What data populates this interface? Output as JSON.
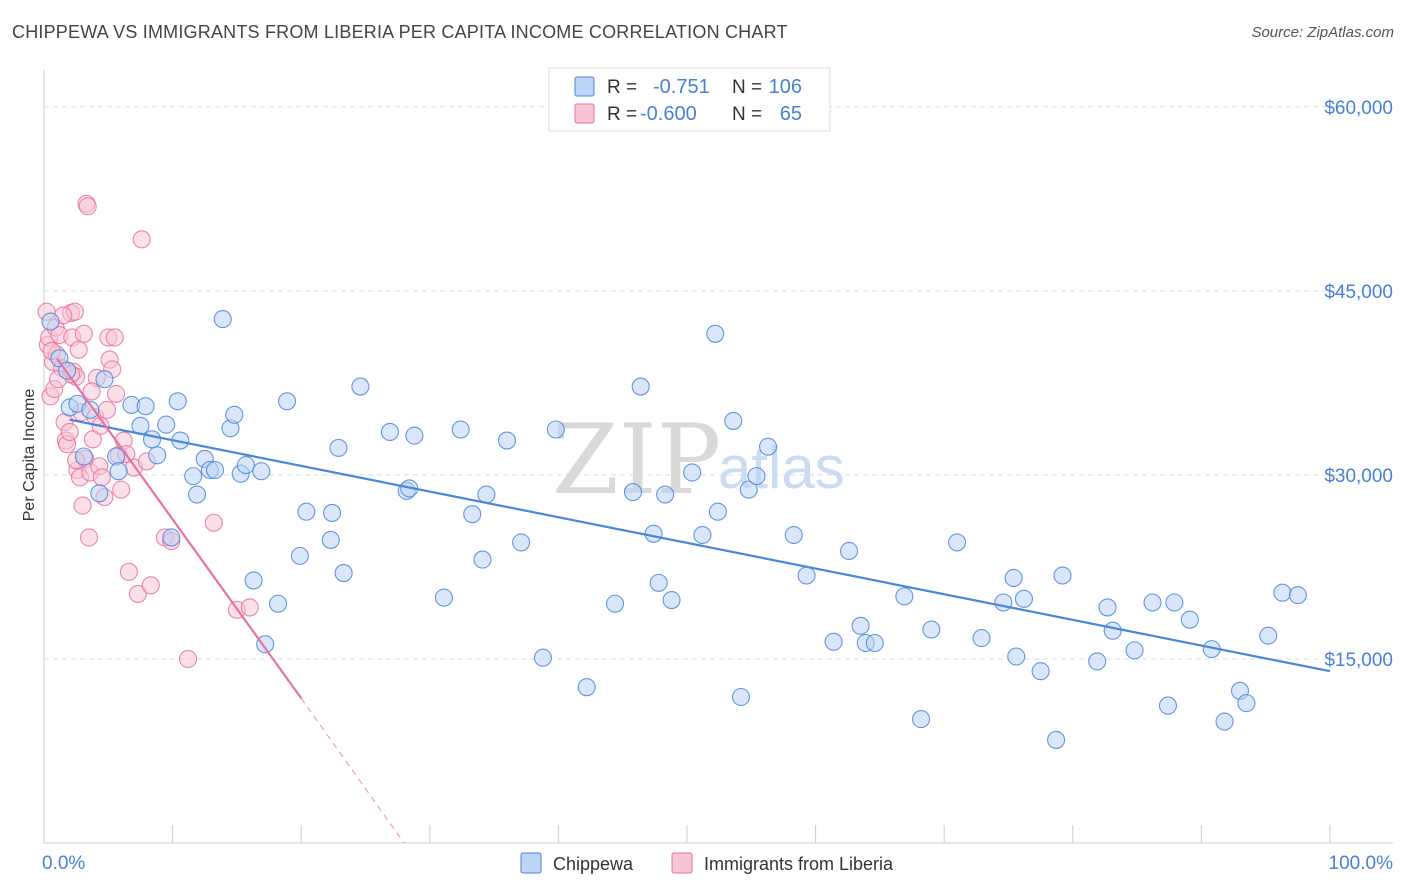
{
  "title": "CHIPPEWA VS IMMIGRANTS FROM LIBERIA PER CAPITA INCOME CORRELATION CHART",
  "source": "Source: ZipAtlas.com",
  "watermark": {
    "zip": "ZIP",
    "atlas": "atlas"
  },
  "colors": {
    "chippewa": "#4a86d8",
    "chippewa_fill": "#bcd4f5",
    "liberia": "#e8739e",
    "liberia_fill": "#f7c5d7",
    "tick_text": "#4a7fd4",
    "grid": "#dddddd"
  },
  "legend": {
    "rows": [
      {
        "r_label": "R =",
        "r_value": "-0.751",
        "n_label": "N =",
        "n_value": "106"
      },
      {
        "r_label": "R =",
        "r_value": "-0.600",
        "n_label": "N =",
        "n_value": "65"
      }
    ]
  },
  "bottom_legend": [
    "Chippewa",
    "Immigrants from Liberia"
  ],
  "chart_data": {
    "type": "scatter",
    "title": "CHIPPEWA VS IMMIGRANTS FROM LIBERIA PER CAPITA INCOME CORRELATION CHART",
    "xlabel": "",
    "ylabel": "Per Capita Income",
    "x_tick_labels": [
      "0.0%",
      "100.0%"
    ],
    "y_tick_labels": [
      "$60,000",
      "$45,000",
      "$30,000",
      "$15,000"
    ],
    "y_ticks": [
      60000,
      45000,
      30000,
      15000
    ],
    "xlim": [
      0,
      100
    ],
    "ylim": [
      0,
      63000
    ],
    "grid": true,
    "series": [
      {
        "name": "Chippewa",
        "trend": {
          "x": [
            2,
            100
          ],
          "y": [
            34500,
            14000
          ]
        },
        "points": [
          [
            0.5,
            42500
          ],
          [
            1.2,
            39500
          ],
          [
            1.8,
            38500
          ],
          [
            2,
            35500
          ],
          [
            2.6,
            35800
          ],
          [
            3.1,
            31500
          ],
          [
            3.6,
            35300
          ],
          [
            4.3,
            28500
          ],
          [
            4.7,
            37800
          ],
          [
            5.6,
            31500
          ],
          [
            5.8,
            30300
          ],
          [
            6.8,
            35700
          ],
          [
            7.5,
            34000
          ],
          [
            7.9,
            35600
          ],
          [
            8.4,
            32900
          ],
          [
            8.8,
            31600
          ],
          [
            9.5,
            34100
          ],
          [
            9.9,
            24900
          ],
          [
            10.4,
            36000
          ],
          [
            10.6,
            32800
          ],
          [
            11.6,
            29900
          ],
          [
            11.9,
            28400
          ],
          [
            12.5,
            31300
          ],
          [
            12.9,
            30400
          ],
          [
            13.3,
            30400
          ],
          [
            13.9,
            42700
          ],
          [
            14.5,
            33800
          ],
          [
            14.8,
            34900
          ],
          [
            15.3,
            30100
          ],
          [
            15.7,
            30800
          ],
          [
            16.3,
            21400
          ],
          [
            16.9,
            30300
          ],
          [
            17.2,
            16200
          ],
          [
            18.2,
            19500
          ],
          [
            18.9,
            36000
          ],
          [
            19.9,
            23400
          ],
          [
            20.4,
            27000
          ],
          [
            22.3,
            24700
          ],
          [
            22.4,
            26900
          ],
          [
            22.9,
            32200
          ],
          [
            23.3,
            22000
          ],
          [
            24.6,
            37200
          ],
          [
            26.9,
            33500
          ],
          [
            28.2,
            28700
          ],
          [
            28.4,
            28900
          ],
          [
            28.8,
            33200
          ],
          [
            31.1,
            20000
          ],
          [
            32.4,
            33700
          ],
          [
            33.3,
            26800
          ],
          [
            34.1,
            23100
          ],
          [
            34.4,
            28400
          ],
          [
            36.0,
            32800
          ],
          [
            37.1,
            24500
          ],
          [
            38.8,
            15100
          ],
          [
            39.8,
            33700
          ],
          [
            42.2,
            12700
          ],
          [
            44.4,
            19500
          ],
          [
            45.8,
            28600
          ],
          [
            46.4,
            37200
          ],
          [
            47.4,
            25200
          ],
          [
            47.8,
            21200
          ],
          [
            48.3,
            28400
          ],
          [
            48.8,
            19800
          ],
          [
            50.4,
            30200
          ],
          [
            51.2,
            25100
          ],
          [
            52.2,
            41500
          ],
          [
            52.4,
            27000
          ],
          [
            53.6,
            34400
          ],
          [
            54.2,
            11900
          ],
          [
            54.8,
            28800
          ],
          [
            55.4,
            29900
          ],
          [
            56.3,
            32300
          ],
          [
            58.3,
            25100
          ],
          [
            59.3,
            21800
          ],
          [
            61.4,
            16400
          ],
          [
            62.6,
            23800
          ],
          [
            63.5,
            17700
          ],
          [
            63.9,
            16300
          ],
          [
            64.6,
            16300
          ],
          [
            66.9,
            20100
          ],
          [
            68.2,
            10100
          ],
          [
            69.0,
            17400
          ],
          [
            71.0,
            24500
          ],
          [
            72.9,
            16700
          ],
          [
            74.6,
            19600
          ],
          [
            75.4,
            21600
          ],
          [
            75.6,
            15200
          ],
          [
            76.2,
            19900
          ],
          [
            77.5,
            14000
          ],
          [
            78.7,
            8400
          ],
          [
            79.2,
            21800
          ],
          [
            81.9,
            14800
          ],
          [
            82.7,
            19200
          ],
          [
            83.1,
            17300
          ],
          [
            84.8,
            15700
          ],
          [
            86.2,
            19600
          ],
          [
            87.4,
            11200
          ],
          [
            87.9,
            19600
          ],
          [
            89.1,
            18200
          ],
          [
            90.8,
            15800
          ],
          [
            91.8,
            9900
          ],
          [
            93.0,
            12400
          ],
          [
            93.5,
            11400
          ],
          [
            95.2,
            16900
          ],
          [
            96.3,
            20400
          ],
          [
            97.5,
            20200
          ]
        ]
      },
      {
        "name": "Immigrants from Liberia",
        "trend": {
          "x": [
            1,
            20
          ],
          "y": [
            39500,
            11800
          ]
        },
        "trend_extension": {
          "x": [
            20,
            28
          ],
          "y": [
            11800,
            0
          ]
        },
        "points": [
          [
            0.2,
            43300
          ],
          [
            0.3,
            40600
          ],
          [
            0.4,
            41200
          ],
          [
            0.5,
            36400
          ],
          [
            0.7,
            39200
          ],
          [
            0.8,
            37000
          ],
          [
            0.9,
            42000
          ],
          [
            1.0,
            39800
          ],
          [
            1.2,
            41400
          ],
          [
            1.4,
            38700
          ],
          [
            1.6,
            34300
          ],
          [
            1.7,
            32800
          ],
          [
            1.8,
            32500
          ],
          [
            2.0,
            33500
          ],
          [
            2.1,
            43200
          ],
          [
            2.2,
            41200
          ],
          [
            2.3,
            38400
          ],
          [
            2.4,
            43300
          ],
          [
            2.5,
            38000
          ],
          [
            2.6,
            30400
          ],
          [
            2.7,
            40200
          ],
          [
            2.8,
            29800
          ],
          [
            2.9,
            35100
          ],
          [
            3.0,
            27500
          ],
          [
            3.1,
            41500
          ],
          [
            3.2,
            31300
          ],
          [
            3.3,
            52100
          ],
          [
            3.4,
            51900
          ],
          [
            3.5,
            24900
          ],
          [
            3.6,
            30200
          ],
          [
            3.8,
            32900
          ],
          [
            4.0,
            34700
          ],
          [
            4.1,
            37900
          ],
          [
            4.3,
            30700
          ],
          [
            4.5,
            29800
          ],
          [
            4.7,
            28200
          ],
          [
            4.9,
            35300
          ],
          [
            5.0,
            41200
          ],
          [
            5.1,
            39400
          ],
          [
            5.3,
            38600
          ],
          [
            5.5,
            41200
          ],
          [
            5.6,
            36600
          ],
          [
            5.8,
            31600
          ],
          [
            6.0,
            28800
          ],
          [
            6.2,
            32800
          ],
          [
            6.4,
            31700
          ],
          [
            6.6,
            22100
          ],
          [
            7.0,
            30600
          ],
          [
            7.3,
            20300
          ],
          [
            7.6,
            49200
          ],
          [
            8.0,
            31100
          ],
          [
            8.3,
            21000
          ],
          [
            9.4,
            24900
          ],
          [
            9.9,
            24600
          ],
          [
            11.2,
            15000
          ],
          [
            13.2,
            26100
          ],
          [
            15.0,
            19000
          ],
          [
            16.0,
            19200
          ],
          [
            1.5,
            43000
          ],
          [
            2.1,
            38200
          ],
          [
            3.7,
            36800
          ],
          [
            4.4,
            34000
          ],
          [
            1.1,
            37800
          ],
          [
            0.6,
            40100
          ],
          [
            2.5,
            31200
          ]
        ]
      }
    ]
  }
}
